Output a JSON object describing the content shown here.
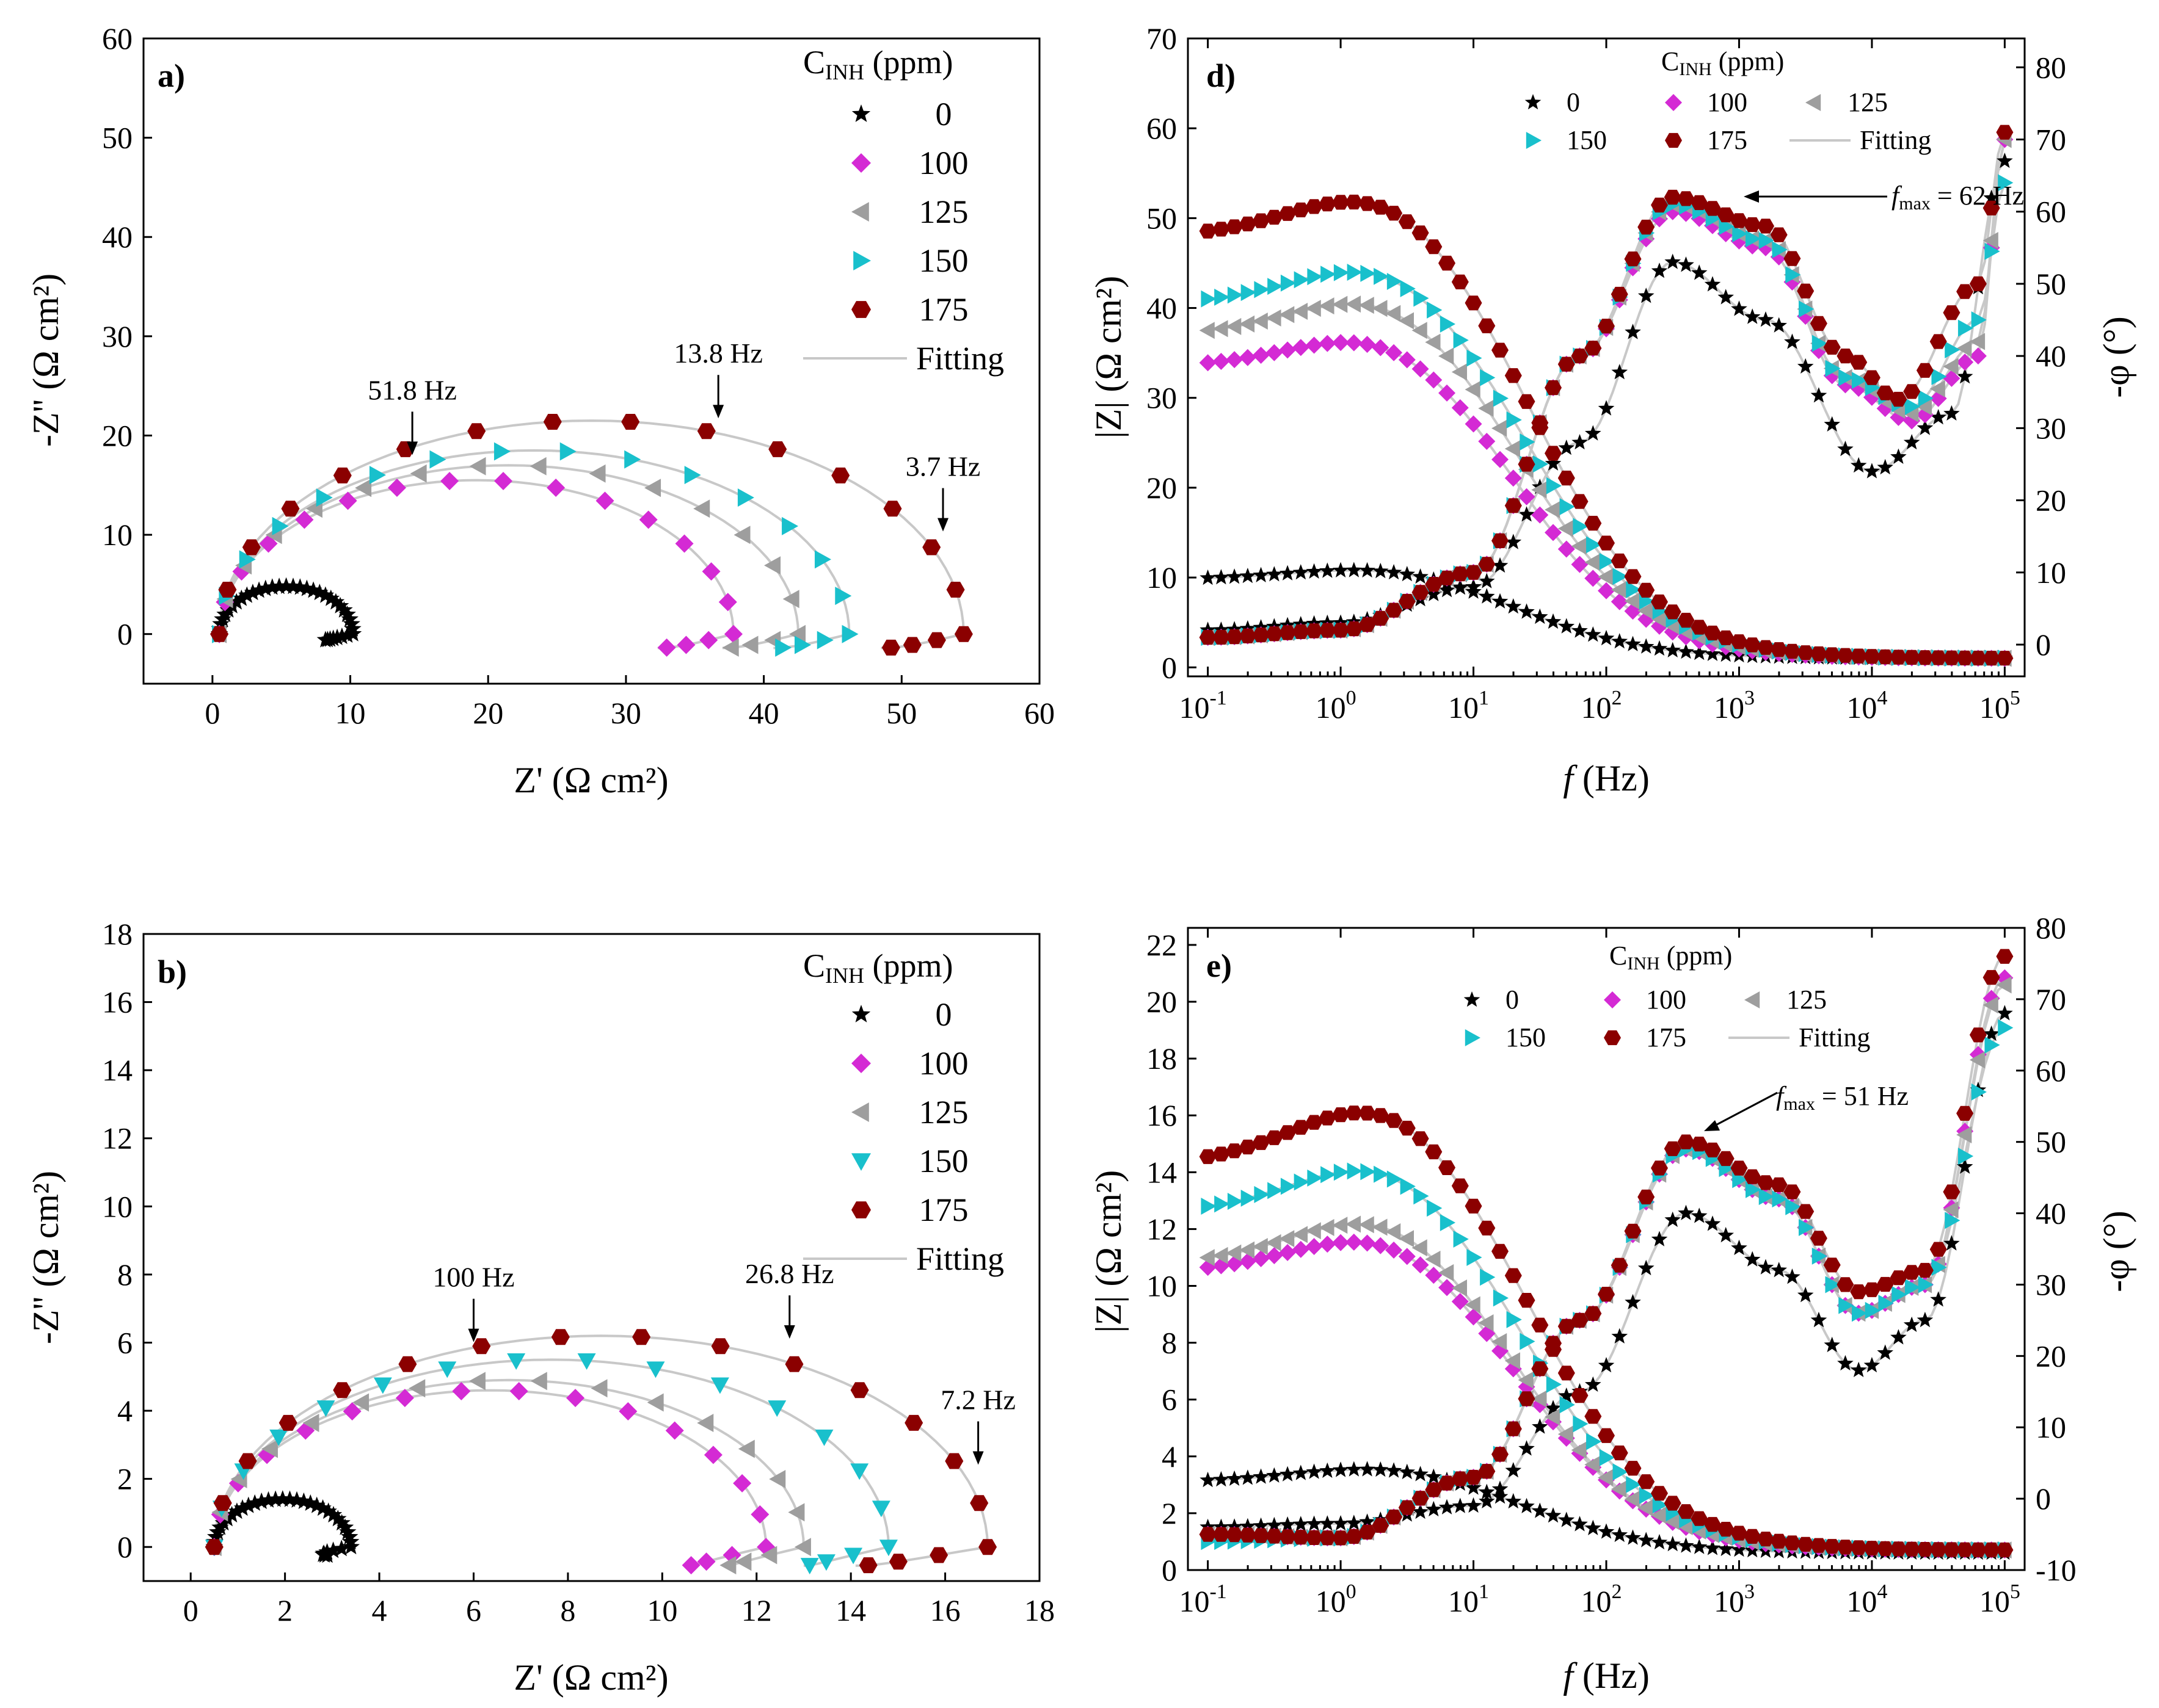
{
  "legend": {
    "title": "C",
    "title_sub": "INH",
    "title_unit": " (ppm)",
    "fitting": "Fitting"
  },
  "colors": {
    "0": "#000000",
    "100": "#d42ad4",
    "125": "#9e9e9e",
    "150": "#19c0cc",
    "175": "#8b0000",
    "fit": "#c8c8c8",
    "fit_green": "#1aa37a"
  },
  "chart_data": [
    {
      "id": "a",
      "type": "scatter",
      "panel_label": "a)",
      "xlabel": "Z' (Ω cm²)",
      "ylabel": "-Z'' (Ω cm²)",
      "xlim": [
        -5,
        60
      ],
      "ylim": [
        -5,
        60
      ],
      "xticks": [
        0,
        10,
        20,
        30,
        40,
        50,
        60
      ],
      "yticks": [
        0,
        10,
        20,
        30,
        40,
        50,
        60
      ],
      "annotations": [
        {
          "text": "51.8 Hz",
          "x": 14.5,
          "y": 17.3
        },
        {
          "text": "13.8 Hz",
          "x": 36.7,
          "y": 21.0
        },
        {
          "text": "3.7 Hz",
          "x": 53.0,
          "y": 9.6
        }
      ],
      "series": [
        {
          "name": "0",
          "marker": "star",
          "Rs": 0.5,
          "R": 10.2,
          "H": 4.8,
          "tail": 2.0,
          "tailH": 0.6
        },
        {
          "name": "100",
          "marker": "diamond",
          "Rs": 0.5,
          "R": 37.8,
          "H": 15.5,
          "tail": 5.5,
          "tailH": 1.4
        },
        {
          "name": "125",
          "marker": "triangle-left",
          "Rs": 0.5,
          "R": 42.5,
          "H": 17.0,
          "tail": 5.5,
          "tailH": 1.4
        },
        {
          "name": "150",
          "marker": "triangle-right",
          "Rs": 0.5,
          "R": 46.2,
          "H": 18.5,
          "tail": 5.5,
          "tailH": 1.4
        },
        {
          "name": "175",
          "marker": "hexagon",
          "Rs": 0.5,
          "R": 54.5,
          "H": 21.5,
          "tail": 6.0,
          "tailH": 1.4
        }
      ]
    },
    {
      "id": "b",
      "type": "scatter",
      "panel_label": "b)",
      "xlabel": "Z' (Ω cm²)",
      "ylabel": "-Z'' (Ω cm²)",
      "xlim": [
        -1,
        18
      ],
      "ylim": [
        -1,
        18
      ],
      "xticks": [
        0,
        2,
        4,
        6,
        8,
        10,
        12,
        14,
        16,
        18
      ],
      "yticks": [
        0,
        2,
        4,
        6,
        8,
        10,
        12,
        14,
        16,
        18
      ],
      "annotations": [
        {
          "text": "100 Hz",
          "x": 6.0,
          "y": 5.8
        },
        {
          "text": "26.8 Hz",
          "x": 12.7,
          "y": 5.9
        },
        {
          "text": "7.2 Hz",
          "x": 16.7,
          "y": 2.2
        }
      ],
      "series": [
        {
          "name": "0",
          "marker": "star",
          "Rs": 0.5,
          "R": 3.4,
          "H": 1.4,
          "tail": 0.5,
          "tailH": 0.25
        },
        {
          "name": "100",
          "marker": "diamond",
          "Rs": 0.5,
          "R": 12.2,
          "H": 4.6,
          "tail": 1.7,
          "tailH": 0.55
        },
        {
          "name": "125",
          "marker": "triangle-left",
          "Rs": 0.5,
          "R": 13.0,
          "H": 4.9,
          "tail": 1.7,
          "tailH": 0.55
        },
        {
          "name": "150",
          "marker": "triangle-down",
          "Rs": 0.5,
          "R": 14.8,
          "H": 5.5,
          "tail": 1.8,
          "tailH": 0.55
        },
        {
          "name": "175",
          "marker": "hexagon",
          "Rs": 0.5,
          "R": 16.9,
          "H": 6.2,
          "tail": 2.8,
          "tailH": 0.55
        }
      ]
    },
    {
      "id": "d",
      "type": "scatter",
      "panel_label": "d)",
      "xlabel": "f (Hz)",
      "ylabel": "|Z| (Ω cm²)",
      "y2label": "-φ (°)",
      "xscale": "log",
      "xlim_log10": [
        -1.15,
        5.15
      ],
      "ylim": [
        -1,
        70
      ],
      "y2lim": [
        -4.4,
        84
      ],
      "xticks_log10": [
        -1,
        0,
        1,
        2,
        3,
        4,
        5
      ],
      "yticks": [
        0,
        10,
        20,
        30,
        40,
        50,
        60,
        70
      ],
      "y2ticks": [
        0,
        10,
        20,
        30,
        40,
        50,
        60,
        70,
        80
      ],
      "annotations": [
        {
          "text": "f",
          "sub": "max",
          "rest": " = 62 Hz"
        }
      ],
      "series": [
        {
          "name": "0",
          "marker": "star",
          "Zlow": 9.8,
          "Zpeak": 11.4,
          "logfc": 1.3,
          "Zhigh": 1.0,
          "ph": [
            [
              -1,
              2
            ],
            [
              0,
              3
            ],
            [
              1,
              8
            ],
            [
              1.8,
              28
            ],
            [
              2.5,
              53
            ],
            [
              3.2,
              45
            ],
            [
              4,
              24
            ],
            [
              4.6,
              32
            ],
            [
              5,
              67
            ]
          ]
        },
        {
          "name": "100",
          "marker": "diamond",
          "Zlow": 33.5,
          "Zpeak": 38.4,
          "logfc": 1.25,
          "Zhigh": 1.0,
          "ph": [
            [
              -1,
              1
            ],
            [
              0,
              2
            ],
            [
              1,
              10
            ],
            [
              1.8,
              40
            ],
            [
              2.5,
              60
            ],
            [
              3.2,
              55
            ],
            [
              3.8,
              36
            ],
            [
              4.3,
              31
            ],
            [
              4.8,
              40
            ],
            [
              5,
              70
            ]
          ]
        },
        {
          "name": "125",
          "marker": "triangle-left",
          "Zlow": 37.0,
          "Zpeak": 42.8,
          "logfc": 1.3,
          "Zhigh": 1.0,
          "ph": [
            [
              -1,
              1
            ],
            [
              0,
              2
            ],
            [
              1,
              10
            ],
            [
              1.8,
              40
            ],
            [
              2.5,
              61
            ],
            [
              3.2,
              56
            ],
            [
              3.8,
              37
            ],
            [
              4.3,
              32
            ],
            [
              4.8,
              42
            ],
            [
              5,
              70
            ]
          ]
        },
        {
          "name": "150",
          "marker": "triangle-right",
          "Zlow": 40.5,
          "Zpeak": 46.3,
          "logfc": 1.35,
          "Zhigh": 1.0,
          "ph": [
            [
              -1,
              1
            ],
            [
              0,
              2
            ],
            [
              1,
              10
            ],
            [
              1.8,
              40
            ],
            [
              2.5,
              61
            ],
            [
              3.2,
              56
            ],
            [
              3.8,
              37
            ],
            [
              4.3,
              33
            ],
            [
              4.8,
              45
            ],
            [
              5,
              64
            ]
          ]
        },
        {
          "name": "175",
          "marker": "hexagon",
          "Zlow": 48.0,
          "Zpeak": 54.5,
          "logfc": 1.35,
          "Zhigh": 1.0,
          "ph": [
            [
              -1,
              1
            ],
            [
              0,
              2
            ],
            [
              1,
              10
            ],
            [
              1.8,
              40
            ],
            [
              2.5,
              62
            ],
            [
              3.2,
              58
            ],
            [
              3.8,
              40
            ],
            [
              4.2,
              34
            ],
            [
              4.8,
              50
            ],
            [
              5,
              71
            ]
          ]
        }
      ]
    },
    {
      "id": "e",
      "type": "scatter",
      "panel_label": "e)",
      "xlabel": "f (Hz)",
      "ylabel": "|Z| (Ω cm²)",
      "y2label": "-φ (°)",
      "xscale": "log",
      "xlim_log10": [
        -1.15,
        5.15
      ],
      "ylim": [
        0,
        22.6
      ],
      "y2lim": [
        -10,
        80
      ],
      "xticks_log10": [
        -1,
        0,
        1,
        2,
        3,
        4,
        5
      ],
      "yticks": [
        0,
        2,
        4,
        6,
        8,
        10,
        12,
        14,
        16,
        18,
        20,
        22
      ],
      "y2ticks": [
        -10,
        0,
        10,
        20,
        30,
        40,
        50,
        60,
        70,
        80
      ],
      "annotations": [
        {
          "text": "f",
          "sub": "max",
          "rest": " = 51 Hz"
        }
      ],
      "series": [
        {
          "name": "0",
          "marker": "star",
          "Zlow": 3.1,
          "Zpeak": 3.7,
          "logfc": 1.4,
          "Zhigh": 0.6,
          "ph": [
            [
              -1,
              -4
            ],
            [
              0,
              -3.5
            ],
            [
              1,
              -1
            ],
            [
              1.8,
              15
            ],
            [
              2.6,
              40
            ],
            [
              3.3,
              32
            ],
            [
              3.9,
              18
            ],
            [
              4.4,
              25
            ],
            [
              5,
              68
            ]
          ]
        },
        {
          "name": "100",
          "marker": "diamond",
          "Zlow": 10.5,
          "Zpeak": 12.2,
          "logfc": 1.3,
          "Zhigh": 0.7,
          "ph": [
            [
              -1,
              -5
            ],
            [
              0,
              -5.5
            ],
            [
              1,
              3
            ],
            [
              1.8,
              25
            ],
            [
              2.6,
              49
            ],
            [
              3.3,
              42
            ],
            [
              3.9,
              26
            ],
            [
              4.4,
              30
            ],
            [
              5,
              73
            ]
          ]
        },
        {
          "name": "125",
          "marker": "triangle-left",
          "Zlow": 10.8,
          "Zpeak": 12.9,
          "logfc": 1.3,
          "Zhigh": 0.7,
          "ph": [
            [
              -1,
              -5
            ],
            [
              0,
              -5.5
            ],
            [
              1,
              3
            ],
            [
              1.8,
              25
            ],
            [
              2.6,
              49
            ],
            [
              3.3,
              42
            ],
            [
              3.9,
              26
            ],
            [
              4.4,
              30
            ],
            [
              5,
              72
            ]
          ]
        },
        {
          "name": "150",
          "marker": "triangle-right",
          "Zlow": 12.6,
          "Zpeak": 14.8,
          "logfc": 1.35,
          "Zhigh": 0.7,
          "ph": [
            [
              -1,
              -6
            ],
            [
              0,
              -5.5
            ],
            [
              1,
              3
            ],
            [
              1.8,
              25
            ],
            [
              2.6,
              49
            ],
            [
              3.3,
              42
            ],
            [
              3.9,
              26
            ],
            [
              4.4,
              30
            ],
            [
              5,
              66
            ]
          ]
        },
        {
          "name": "175",
          "marker": "hexagon",
          "Zlow": 14.3,
          "Zpeak": 16.9,
          "logfc": 1.4,
          "Zhigh": 0.7,
          "ph": [
            [
              -1,
              -5
            ],
            [
              0,
              -5.5
            ],
            [
              1,
              3
            ],
            [
              1.8,
              25
            ],
            [
              2.6,
              50
            ],
            [
              3.3,
              44
            ],
            [
              3.9,
              29
            ],
            [
              4.4,
              32
            ],
            [
              5,
              76
            ]
          ]
        }
      ]
    }
  ]
}
